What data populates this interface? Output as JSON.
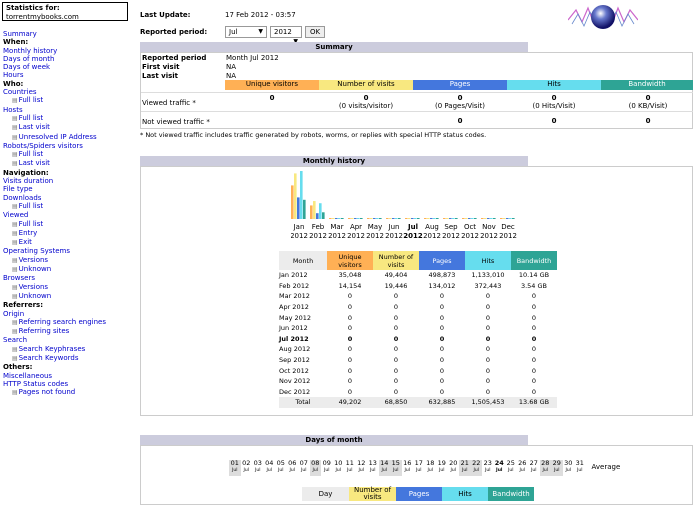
{
  "sidebar": {
    "stats_label": "Statistics for:",
    "site": "torrentmybooks.com",
    "menu": [
      {
        "t": "a",
        "label": "Summary"
      },
      {
        "t": "sec",
        "label": "When:"
      },
      {
        "t": "a",
        "label": "Monthly history"
      },
      {
        "t": "a",
        "label": "Days of month"
      },
      {
        "t": "a",
        "label": "Days of week"
      },
      {
        "t": "a",
        "label": "Hours"
      },
      {
        "t": "sec",
        "label": "Who:"
      },
      {
        "t": "a",
        "label": "Countries"
      },
      {
        "t": "sub",
        "label": "Full list"
      },
      {
        "t": "a",
        "label": "Hosts"
      },
      {
        "t": "sub",
        "label": "Full list"
      },
      {
        "t": "sub",
        "label": "Last visit"
      },
      {
        "t": "sub",
        "label": "Unresolved IP Address"
      },
      {
        "t": "a",
        "label": "Robots/Spiders visitors"
      },
      {
        "t": "sub",
        "label": "Full list"
      },
      {
        "t": "sub",
        "label": "Last visit"
      },
      {
        "t": "sec",
        "label": "Navigation:"
      },
      {
        "t": "a",
        "label": "Visits duration"
      },
      {
        "t": "a",
        "label": "File type"
      },
      {
        "t": "a",
        "label": "Downloads"
      },
      {
        "t": "sub",
        "label": "Full list"
      },
      {
        "t": "a",
        "label": "Viewed"
      },
      {
        "t": "sub",
        "label": "Full list"
      },
      {
        "t": "sub",
        "label": "Entry"
      },
      {
        "t": "sub",
        "label": "Exit"
      },
      {
        "t": "a",
        "label": "Operating Systems"
      },
      {
        "t": "sub",
        "label": "Versions"
      },
      {
        "t": "sub",
        "label": "Unknown"
      },
      {
        "t": "a",
        "label": "Browsers"
      },
      {
        "t": "sub",
        "label": "Versions"
      },
      {
        "t": "sub",
        "label": "Unknown"
      },
      {
        "t": "sec",
        "label": "Referrers:"
      },
      {
        "t": "a",
        "label": "Origin"
      },
      {
        "t": "sub",
        "label": "Referring search engines"
      },
      {
        "t": "sub",
        "label": "Referring sites"
      },
      {
        "t": "a",
        "label": "Search"
      },
      {
        "t": "sub",
        "label": "Search Keyphrases"
      },
      {
        "t": "sub",
        "label": "Search Keywords"
      },
      {
        "t": "sec",
        "label": "Others:"
      },
      {
        "t": "a",
        "label": "Miscellaneous"
      },
      {
        "t": "a",
        "label": "HTTP Status codes"
      },
      {
        "t": "sub",
        "label": "Pages not found"
      }
    ]
  },
  "header": {
    "last_update_label": "Last Update:",
    "last_update_value": "17 Feb 2012 - 03:57",
    "period_label": "Reported period:",
    "month": "Jul",
    "year": "2012",
    "ok_label": "OK"
  },
  "summary": {
    "title": "Summary",
    "reported_period_label": "Reported period",
    "reported_period_value": "Month Jul 2012",
    "first_visit_label": "First visit",
    "first_visit_value": "NA",
    "last_visit_label": "Last visit",
    "last_visit_value": "NA",
    "cols": [
      "Unique visitors",
      "Number of visits",
      "Pages",
      "Hits",
      "Bandwidth"
    ],
    "viewed_label": "Viewed traffic *",
    "viewed": [
      "0",
      "0",
      "0",
      "0",
      "0"
    ],
    "viewed_sub": [
      "",
      "(0 visits/visitor)",
      "(0 Pages/Visit)",
      "(0 Hits/Visit)",
      "(0 KB/Visit)"
    ],
    "not_viewed_label": "Not viewed traffic *",
    "not_viewed": [
      "",
      "",
      "0",
      "0",
      "0"
    ],
    "footnote": "* Not viewed traffic includes traffic generated by robots, worms, or replies with special HTTP status codes."
  },
  "monthly": {
    "title": "Monthly history",
    "headers": [
      "Month",
      "Unique visitors",
      "Number of visits",
      "Pages",
      "Hits",
      "Bandwidth"
    ],
    "rows": [
      [
        "Jan 2012",
        "35,048",
        "49,404",
        "498,873",
        "1,133,010",
        "10.14 GB"
      ],
      [
        "Feb 2012",
        "14,154",
        "19,446",
        "134,012",
        "372,443",
        "3.54 GB"
      ],
      [
        "Mar 2012",
        "0",
        "0",
        "0",
        "0",
        "0"
      ],
      [
        "Apr 2012",
        "0",
        "0",
        "0",
        "0",
        "0"
      ],
      [
        "May 2012",
        "0",
        "0",
        "0",
        "0",
        "0"
      ],
      [
        "Jun 2012",
        "0",
        "0",
        "0",
        "0",
        "0"
      ],
      [
        "Jul 2012",
        "0",
        "0",
        "0",
        "0",
        "0"
      ],
      [
        "Aug 2012",
        "0",
        "0",
        "0",
        "0",
        "0"
      ],
      [
        "Sep 2012",
        "0",
        "0",
        "0",
        "0",
        "0"
      ],
      [
        "Oct 2012",
        "0",
        "0",
        "0",
        "0",
        "0"
      ],
      [
        "Nov 2012",
        "0",
        "0",
        "0",
        "0",
        "0"
      ],
      [
        "Dec 2012",
        "0",
        "0",
        "0",
        "0",
        "0"
      ]
    ],
    "total": [
      "Total",
      "49,202",
      "68,850",
      "632,885",
      "1,505,453",
      "13.68 GB"
    ]
  },
  "chart_data": {
    "type": "bar",
    "categories": [
      "Jan 2012",
      "Feb 2012",
      "Mar 2012",
      "Apr 2012",
      "May 2012",
      "Jun 2012",
      "Jul 2012",
      "Aug 2012",
      "Sep 2012",
      "Oct 2012",
      "Nov 2012",
      "Dec 2012"
    ],
    "month_labels": [
      "Jan",
      "Feb",
      "Mar",
      "Apr",
      "May",
      "Jun",
      "Jul",
      "Aug",
      "Sep",
      "Oct",
      "Nov",
      "Dec"
    ],
    "year_label": "2012",
    "series": [
      {
        "name": "Unique visitors",
        "color": "#ffb055",
        "values": [
          35048,
          14154,
          0,
          0,
          0,
          0,
          0,
          0,
          0,
          0,
          0,
          0
        ]
      },
      {
        "name": "Number of visits",
        "color": "#f8e880",
        "values": [
          49404,
          19446,
          0,
          0,
          0,
          0,
          0,
          0,
          0,
          0,
          0,
          0
        ]
      },
      {
        "name": "Pages",
        "color": "#4477dd",
        "values": [
          498873,
          134012,
          0,
          0,
          0,
          0,
          0,
          0,
          0,
          0,
          0,
          0
        ]
      },
      {
        "name": "Hits",
        "color": "#66ddee",
        "values": [
          1133010,
          372443,
          0,
          0,
          0,
          0,
          0,
          0,
          0,
          0,
          0,
          0
        ]
      },
      {
        "name": "Bandwidth",
        "color": "#2ea495",
        "values": [
          10.14,
          3.54,
          0,
          0,
          0,
          0,
          0,
          0,
          0,
          0,
          0,
          0
        ]
      }
    ]
  },
  "days": {
    "title": "Days of month",
    "labels": [
      "01",
      "02",
      "03",
      "04",
      "05",
      "06",
      "07",
      "08",
      "09",
      "10",
      "11",
      "12",
      "13",
      "14",
      "15",
      "16",
      "17",
      "18",
      "19",
      "20",
      "21",
      "22",
      "23",
      "24",
      "25",
      "26",
      "27",
      "28",
      "29",
      "30",
      "31"
    ],
    "sub": "Jul",
    "weekend": [
      1,
      8,
      14,
      15,
      21,
      22,
      28,
      29
    ],
    "bold_day": 24,
    "average_label": "Average",
    "cols": [
      "Day",
      "Number of visits",
      "Pages",
      "Hits",
      "Bandwidth"
    ]
  }
}
